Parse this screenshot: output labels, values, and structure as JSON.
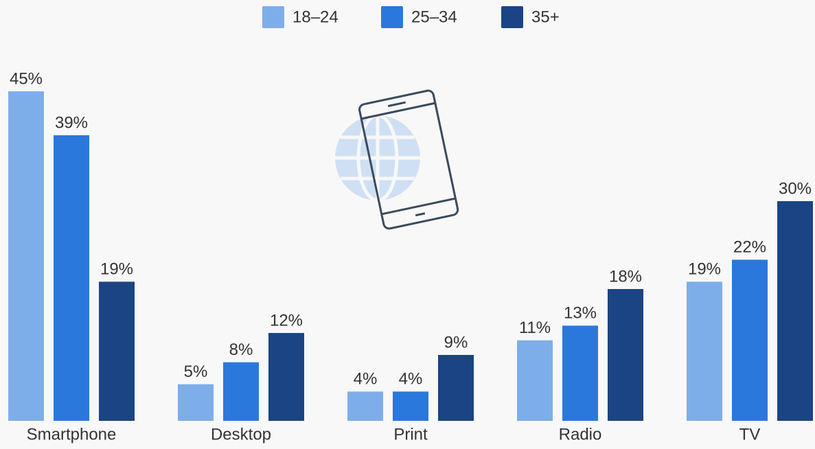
{
  "chart_data": {
    "type": "bar",
    "categories": [
      "Smartphone",
      "Desktop",
      "Print",
      "Radio",
      "TV"
    ],
    "series": [
      {
        "name": "18–24",
        "color": "#7eaee9",
        "values": [
          45,
          5,
          4,
          11,
          19
        ],
        "value_labels": [
          "45%",
          "5%",
          "4%",
          "11%",
          "19%"
        ]
      },
      {
        "name": "25–34",
        "color": "#2a78dc",
        "values": [
          39,
          8,
          4,
          13,
          22
        ],
        "value_labels": [
          "39%",
          "8%",
          "4%",
          "13%",
          "22%"
        ]
      },
      {
        "name": "35+",
        "color": "#1a4483",
        "values": [
          19,
          12,
          9,
          18,
          30
        ],
        "value_labels": [
          "19%",
          "12%",
          "9%",
          "18%",
          "30%"
        ]
      }
    ],
    "legend": "top"
  }
}
